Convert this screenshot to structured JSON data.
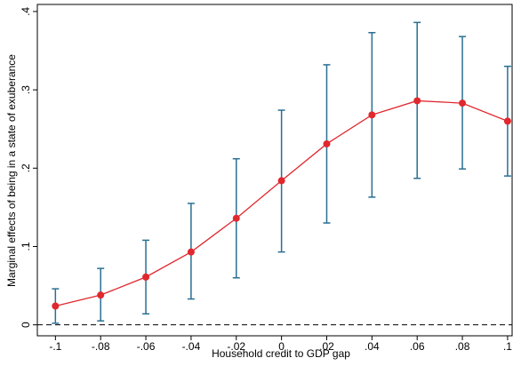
{
  "chart_data": {
    "type": "errorbar_line",
    "x_label": "Household credit to GDP gap",
    "y_label": "Marginal effects of being in a state of exuberance",
    "x": [
      -0.1,
      -0.08,
      -0.06,
      -0.04,
      -0.02,
      0,
      0.02,
      0.04,
      0.06,
      0.08,
      0.1
    ],
    "values": [
      0.024,
      0.038,
      0.061,
      0.093,
      0.136,
      0.184,
      0.231,
      0.268,
      0.286,
      0.283,
      0.26
    ],
    "ci_low": [
      0.002,
      0.005,
      0.014,
      0.033,
      0.06,
      0.093,
      0.13,
      0.163,
      0.187,
      0.199,
      0.19
    ],
    "ci_high": [
      0.046,
      0.072,
      0.108,
      0.155,
      0.212,
      0.274,
      0.332,
      0.373,
      0.386,
      0.368,
      0.33
    ],
    "color": "#e0282e",
    "errorbar_color": "#2a6f93",
    "reference_line": 0,
    "xlim": [
      -0.108,
      0.102
    ],
    "ylim": [
      -0.014,
      0.409
    ],
    "xticks": [
      {
        "value": -0.1,
        "label": "-.1"
      },
      {
        "value": -0.08,
        "label": "-.08"
      },
      {
        "value": -0.06,
        "label": "-.06"
      },
      {
        "value": -0.04,
        "label": "-.04"
      },
      {
        "value": -0.02,
        "label": "-.02"
      },
      0,
      {
        "value": 0.02,
        "label": ".02"
      },
      {
        "value": 0.04,
        "label": ".04"
      },
      {
        "value": 0.06,
        "label": ".06"
      },
      {
        "value": 0.08,
        "label": ".08"
      },
      {
        "value": 0.1,
        "label": ".1"
      }
    ],
    "yticks": [
      0,
      {
        "value": 0.1,
        "label": ".1"
      },
      {
        "value": 0.2,
        "label": ".2"
      },
      {
        "value": 0.3,
        "label": ".3"
      },
      {
        "value": 0.4,
        "label": ".4"
      }
    ]
  }
}
